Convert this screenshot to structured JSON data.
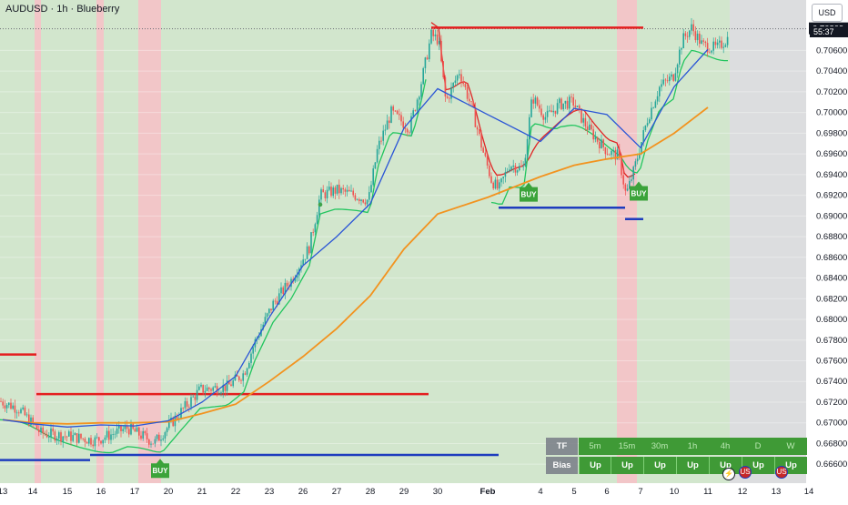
{
  "header": {
    "title": "AUDUSD · 1h · Blueberry",
    "currency": "USD",
    "countdown": "55:37"
  },
  "colors": {
    "bull_bg": "#d2e6cd",
    "bear_bg": "#f2c6c8",
    "future_bg": "#dcdddf",
    "resistance": "#e41e1e",
    "support": "#1e3cbe",
    "ma_orange": "#f2931f",
    "ma_blue": "#2a55d6",
    "trail_green": "#22c55e",
    "trail_red": "#e02525",
    "buy": "#3ba33a",
    "candle_up": "#26a69a",
    "candle_down": "#ef5350"
  },
  "chart_data": {
    "type": "line",
    "title": "AUDUSD · 1h · Blueberry",
    "y_axis": {
      "ticks": [
        "0.70600",
        "0.70400",
        "0.70200",
        "0.70000",
        "0.69800",
        "0.69600",
        "0.69400",
        "0.69200",
        "0.69000",
        "0.68800",
        "0.68600",
        "0.68400",
        "0.68200",
        "0.68000",
        "0.67800",
        "0.67600",
        "0.67400",
        "0.67200",
        "0.67000",
        "0.66800",
        "0.66600"
      ],
      "ylim": [
        0.6654,
        0.7085
      ]
    },
    "x_axis": {
      "ticks": [
        "13",
        "14",
        "15",
        "16",
        "17",
        "20",
        "21",
        "22",
        "23",
        "26",
        "27",
        "28",
        "29",
        "30",
        "Feb",
        "4",
        "5",
        "6",
        "7",
        "10",
        "11",
        "12",
        "13",
        "14"
      ]
    },
    "current_price": "0.70809",
    "series": [
      {
        "key": "ma_orange",
        "x": [
          "13",
          "14",
          "15",
          "16",
          "17",
          "20",
          "21",
          "22",
          "23",
          "26",
          "27",
          "28",
          "29",
          "30",
          "Feb",
          "4",
          "5",
          "6",
          "7",
          "10",
          "11"
        ],
        "values": [
          0.6703,
          0.67,
          0.6699,
          0.67,
          0.67,
          0.6701,
          0.6709,
          0.6718,
          0.674,
          0.6764,
          0.6791,
          0.6823,
          0.6868,
          0.6902,
          0.6918,
          0.6938,
          0.6949,
          0.6955,
          0.696,
          0.698,
          0.7005
        ]
      },
      {
        "key": "ma_blue",
        "x": [
          "13",
          "14",
          "15",
          "16",
          "17",
          "20",
          "21",
          "22",
          "23",
          "26",
          "27",
          "28",
          "29",
          "30",
          "Feb",
          "4",
          "5",
          "6",
          "7",
          "10",
          "11"
        ],
        "values": [
          0.6703,
          0.6699,
          0.6696,
          0.6698,
          0.6697,
          0.6702,
          0.672,
          0.6745,
          0.6802,
          0.6852,
          0.688,
          0.6912,
          0.6985,
          0.7023,
          0.6998,
          0.6972,
          0.7004,
          0.6998,
          0.6966,
          0.7025,
          0.7061
        ]
      }
    ],
    "levels": [
      {
        "kind": "resistance",
        "price": 0.6766,
        "from": "13",
        "to": "14"
      },
      {
        "kind": "resistance",
        "price": 0.67278,
        "from": "14",
        "to": "29"
      },
      {
        "kind": "resistance",
        "price": 0.7082,
        "from": "29",
        "to": "10"
      },
      {
        "kind": "support",
        "price": 0.6664,
        "from": "13",
        "to": "16"
      },
      {
        "kind": "support",
        "price": 0.6669,
        "from": "16",
        "to": "Feb"
      },
      {
        "kind": "support",
        "price": 0.6908,
        "from": "30",
        "to": "6"
      },
      {
        "kind": "support",
        "price": 0.6897,
        "from": "6",
        "to": "7"
      }
    ],
    "signals": [
      {
        "label": "BUY",
        "x": "17",
        "price": 0.6667
      },
      {
        "label": "BUY",
        "x": "Feb",
        "price": 0.6934
      },
      {
        "label": "BUY",
        "x": "7",
        "price": 0.6935
      }
    ]
  },
  "bias_table": {
    "header_label": "TF",
    "row_label": "Bias",
    "timeframes": [
      "5m",
      "15m",
      "30m",
      "1h",
      "4h",
      "D",
      "W"
    ],
    "biases": [
      "Up",
      "Up",
      "Up",
      "Up",
      "Up",
      "Up",
      "Up"
    ]
  },
  "events": {
    "lightning": "⚡",
    "flag_a": "US",
    "flag_b": "US"
  }
}
